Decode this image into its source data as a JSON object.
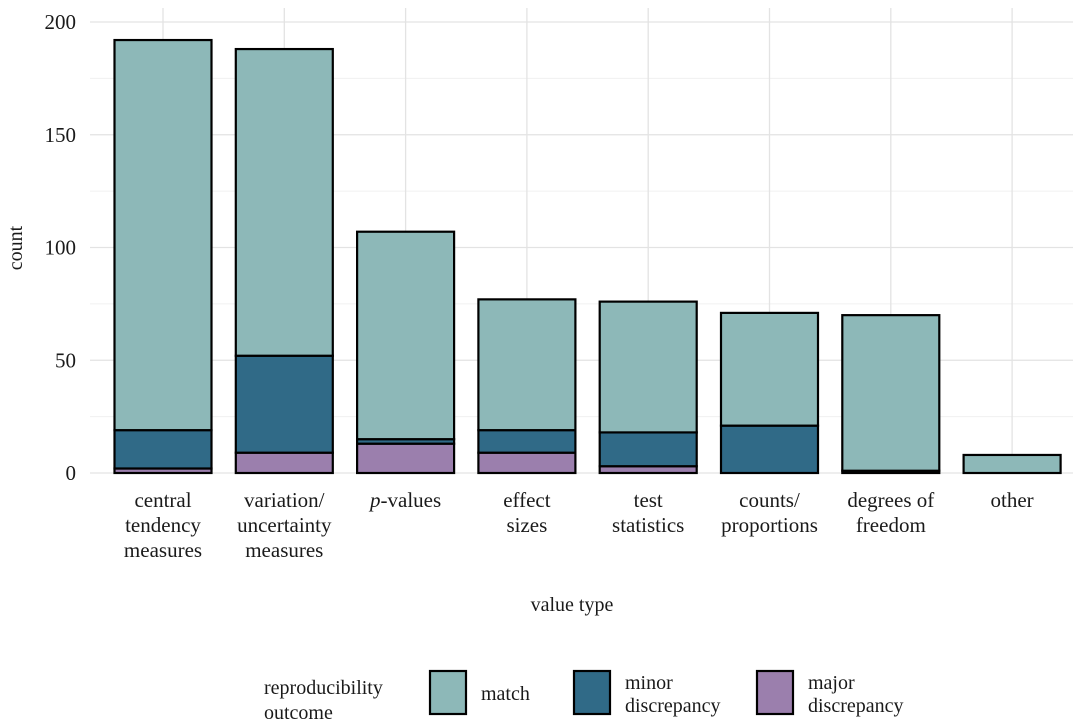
{
  "chart_data": {
    "type": "bar",
    "stacked": true,
    "categories": [
      [
        "central",
        "tendency",
        "measures"
      ],
      [
        "variation/",
        "uncertainty",
        "measures"
      ],
      [
        "p-values"
      ],
      [
        "effect",
        "sizes"
      ],
      [
        "test",
        "statistics"
      ],
      [
        "counts/",
        "proportions"
      ],
      [
        "degrees of",
        "freedom"
      ],
      [
        "other"
      ]
    ],
    "series": [
      {
        "name": "major discrepancy",
        "color": "#9b7fad",
        "values": [
          2,
          9,
          13,
          9,
          3,
          0,
          0,
          0
        ]
      },
      {
        "name": "minor discrepancy",
        "color": "#306a87",
        "values": [
          17,
          43,
          2,
          10,
          15,
          21,
          1,
          0
        ]
      },
      {
        "name": "match",
        "color": "#8db8b8",
        "values": [
          173,
          136,
          92,
          58,
          58,
          50,
          69,
          8
        ]
      }
    ],
    "xlabel": "value type",
    "ylabel": "count",
    "ylim": [
      0,
      200
    ],
    "yticks": [
      0,
      50,
      100,
      150,
      200
    ],
    "grid": true,
    "legend": {
      "title": [
        "reproducibility",
        "outcome"
      ],
      "position": "bottom",
      "items": [
        {
          "label": [
            "match"
          ],
          "color": "#8db8b8"
        },
        {
          "label": [
            "minor",
            "discrepancy"
          ],
          "color": "#306a87"
        },
        {
          "label": [
            "major",
            "discrepancy"
          ],
          "color": "#9b7fad"
        }
      ]
    }
  }
}
